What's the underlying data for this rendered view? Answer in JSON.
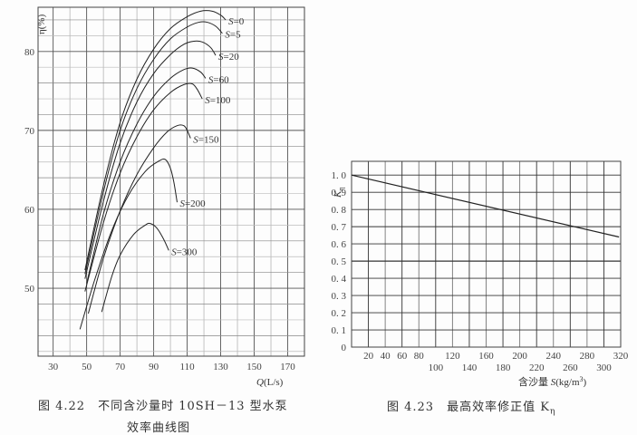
{
  "chart_data": [
    {
      "type": "line",
      "title": "图 4.22 不同含沙量时 10SH-13 型水泵效率曲线图",
      "caption_line1": "图 4.22　不同含沙量时 10SH－13 型水泵",
      "caption_line2": "效率曲线图",
      "xlabel": "Q(L/s)",
      "ylabel": "η(%)",
      "xlim": [
        21,
        180
      ],
      "ylim": [
        41.4,
        85.6
      ],
      "x_ticks": [
        30,
        50,
        70,
        90,
        110,
        130,
        150,
        170
      ],
      "y_ticks": [
        50,
        60,
        70,
        80
      ],
      "grid": true,
      "series": [
        {
          "name": "S=0",
          "label": "S=0",
          "points": [
            [
              49,
              52.3
            ],
            [
              60,
              63
            ],
            [
              70,
              71
            ],
            [
              80,
              76.5
            ],
            [
              90,
              80.3
            ],
            [
              100,
              82.9
            ],
            [
              110,
              84.4
            ],
            [
              118,
              85.1
            ],
            [
              125,
              85.1
            ],
            [
              130,
              84.6
            ],
            [
              133,
              84.0
            ]
          ]
        },
        {
          "name": "S=5",
          "label": "S=5",
          "points": [
            [
              49,
              51.8
            ],
            [
              60,
              62.2
            ],
            [
              70,
              70
            ],
            [
              80,
              75.3
            ],
            [
              90,
              79
            ],
            [
              100,
              81.6
            ],
            [
              110,
              83.1
            ],
            [
              117,
              83.7
            ],
            [
              122,
              83.7
            ],
            [
              127,
              83.2
            ],
            [
              131,
              82.3
            ]
          ]
        },
        {
          "name": "S=20",
          "label": "S=20",
          "points": [
            [
              49,
              51.2
            ],
            [
              60,
              61
            ],
            [
              70,
              68.4
            ],
            [
              80,
              73.6
            ],
            [
              90,
              77.2
            ],
            [
              100,
              79.6
            ],
            [
              108,
              80.9
            ],
            [
              114,
              81.3
            ],
            [
              119,
              81.2
            ],
            [
              124,
              80.5
            ],
            [
              127,
              79.5
            ]
          ]
        },
        {
          "name": "S=60",
          "label": "S=60",
          "points": [
            [
              50,
              50.6
            ],
            [
              60,
              59.4
            ],
            [
              70,
              66
            ],
            [
              80,
              70.8
            ],
            [
              90,
              74.3
            ],
            [
              100,
              76.6
            ],
            [
              108,
              77.7
            ],
            [
              113,
              77.9
            ],
            [
              118,
              77.4
            ],
            [
              121,
              76.6
            ]
          ]
        },
        {
          "name": "S=100",
          "label": "S=100",
          "points": [
            [
              49,
              49.6
            ],
            [
              60,
              58.3
            ],
            [
              70,
              64.6
            ],
            [
              80,
              69.2
            ],
            [
              90,
              72.6
            ],
            [
              100,
              74.8
            ],
            [
              108,
              75.8
            ],
            [
              113,
              75.9
            ],
            [
              116,
              75.2
            ],
            [
              119,
              74.0
            ]
          ]
        },
        {
          "name": "S=150",
          "label": "S=150",
          "points": [
            [
              51,
              46.8
            ],
            [
              60,
              53.8
            ],
            [
              70,
              59.8
            ],
            [
              80,
              64.4
            ],
            [
              90,
              67.8
            ],
            [
              98,
              69.8
            ],
            [
              104,
              70.6
            ],
            [
              108,
              70.6
            ],
            [
              110,
              70.0
            ],
            [
              112,
              69.0
            ]
          ]
        },
        {
          "name": "S=200",
          "label": "S=200",
          "points": [
            [
              46,
              44.8
            ],
            [
              55,
              51.2
            ],
            [
              65,
              57.3
            ],
            [
              75,
              61.8
            ],
            [
              85,
              64.8
            ],
            [
              93,
              66.1
            ],
            [
              97,
              66.3
            ],
            [
              100,
              65.2
            ],
            [
              102,
              63.5
            ],
            [
              104,
              60.9
            ]
          ]
        },
        {
          "name": "S=300",
          "label": "S=300",
          "points": [
            [
              59,
              47.0
            ],
            [
              65,
              51.5
            ],
            [
              70,
              54.2
            ],
            [
              78,
              56.8
            ],
            [
              85,
              58.0
            ],
            [
              88,
              58.2
            ],
            [
              92,
              57.6
            ],
            [
              96,
              56.2
            ],
            [
              99,
              54.8
            ]
          ]
        }
      ]
    },
    {
      "type": "line",
      "title": "图 4.23 最高效率修正值 Kη",
      "caption": "图 4.23　最高效率修正值 K",
      "caption_sub": "η",
      "xlabel": "含沙量 S(kg/m³)",
      "xlabel_prefix": "含沙量 ",
      "xlabel_var": "S",
      "xlabel_unit": "(kg/m",
      "xlabel_sup": "3",
      "xlabel_close": ")",
      "ylabel": "Kη",
      "xlim": [
        0,
        320
      ],
      "ylim": [
        0,
        1.08
      ],
      "x_ticks_row1": [
        20,
        40,
        60,
        80,
        120,
        160,
        200,
        240,
        280,
        320
      ],
      "x_ticks_row2": [
        100,
        140,
        180,
        220,
        260,
        300
      ],
      "y_ticks": [
        "0",
        "0.1",
        "0.2",
        "0.3",
        "0.4",
        "0.5",
        "0.6",
        "0.7",
        "0.8",
        "0.9",
        "1.0"
      ],
      "grid": true,
      "series": [
        {
          "name": "Kη",
          "points": [
            [
              0,
              1.0
            ],
            [
              318,
              0.64
            ]
          ]
        }
      ]
    }
  ]
}
